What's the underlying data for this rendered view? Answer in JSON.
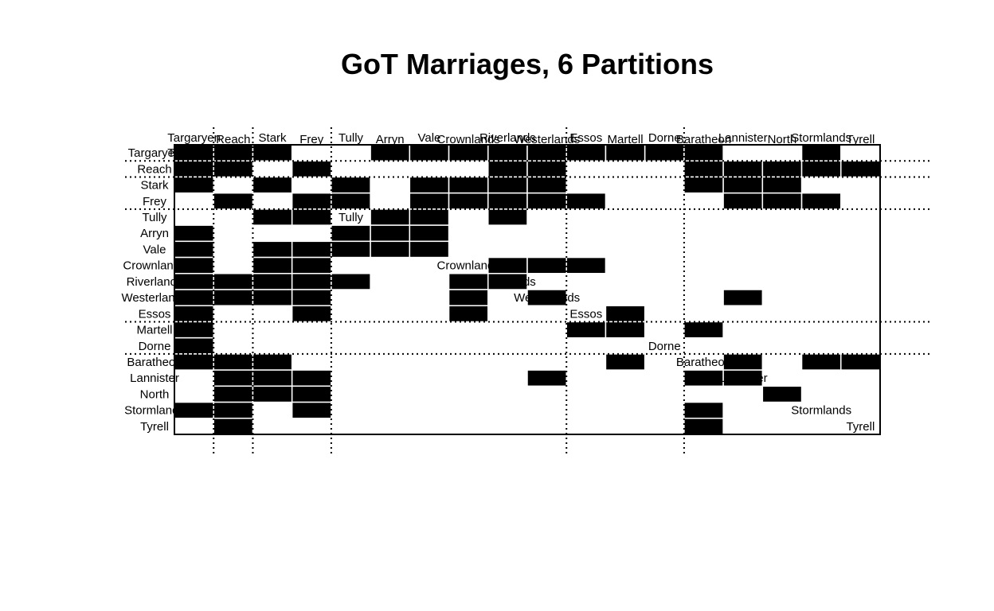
{
  "chart_data": {
    "type": "heatmap",
    "title": "GoT Marriages, 6 Partitions",
    "nodes": [
      "Targaryen",
      "Reach",
      "Stark",
      "Frey",
      "Tully",
      "Arryn",
      "Vale",
      "Crownlands",
      "Riverlands",
      "Westerlands",
      "Essos",
      "Martell",
      "Dorne",
      "Baratheon",
      "Lannister",
      "North",
      "Stormlands",
      "Tyrell"
    ],
    "row_labels": [
      "Targaryen",
      "Reach",
      "Stark",
      "Frey",
      "Tully",
      "Arryn",
      "Vale",
      "Crownlands",
      "Riverlands",
      "Westerlands",
      "Essos",
      "Martell",
      "Dorne",
      "Baratheon",
      "Lannister",
      "North",
      "Stormlands",
      "Tyrell"
    ],
    "col_labels": [
      "Targaryen",
      "Reach",
      "Stark",
      "Frey",
      "Tully",
      "Arryn",
      "Vale",
      "Crownlands",
      "Riverlands",
      "Westerlands",
      "Essos",
      "Martell",
      "Dorne",
      "Baratheon",
      "Lannister",
      "North",
      "Stormlands",
      "Tyrell"
    ],
    "partition_cols": [
      1,
      2,
      4,
      10,
      13
    ],
    "partition_rows": [
      1,
      2,
      4,
      11,
      13
    ],
    "grid": false,
    "matrix": [
      [
        1,
        1,
        1,
        0,
        0,
        1,
        1,
        1,
        1,
        1,
        1,
        1,
        1,
        1,
        0,
        0,
        1,
        0
      ],
      [
        1,
        1,
        0,
        1,
        0,
        0,
        0,
        0,
        1,
        1,
        0,
        0,
        0,
        1,
        1,
        1,
        1,
        1
      ],
      [
        1,
        0,
        1,
        0,
        1,
        0,
        1,
        1,
        1,
        1,
        0,
        0,
        0,
        1,
        1,
        1,
        0,
        0
      ],
      [
        0,
        1,
        0,
        1,
        1,
        0,
        1,
        1,
        1,
        1,
        1,
        0,
        0,
        0,
        1,
        1,
        1,
        0
      ],
      [
        0,
        0,
        1,
        1,
        0,
        1,
        1,
        0,
        1,
        0,
        0,
        0,
        0,
        0,
        0,
        0,
        0,
        0
      ],
      [
        1,
        0,
        0,
        0,
        1,
        1,
        1,
        0,
        0,
        0,
        0,
        0,
        0,
        0,
        0,
        0,
        0,
        0
      ],
      [
        1,
        0,
        1,
        1,
        1,
        1,
        1,
        0,
        0,
        0,
        0,
        0,
        0,
        0,
        0,
        0,
        0,
        0
      ],
      [
        1,
        0,
        1,
        1,
        0,
        0,
        0,
        0,
        1,
        1,
        1,
        0,
        0,
        0,
        0,
        0,
        0,
        0
      ],
      [
        1,
        1,
        1,
        1,
        1,
        0,
        0,
        1,
        1,
        0,
        0,
        0,
        0,
        0,
        0,
        0,
        0,
        0
      ],
      [
        1,
        1,
        1,
        1,
        0,
        0,
        0,
        1,
        0,
        1,
        0,
        0,
        0,
        0,
        1,
        0,
        0,
        0
      ],
      [
        1,
        0,
        0,
        1,
        0,
        0,
        0,
        1,
        0,
        0,
        0,
        1,
        0,
        0,
        0,
        0,
        0,
        0
      ],
      [
        1,
        0,
        0,
        0,
        0,
        0,
        0,
        0,
        0,
        0,
        1,
        1,
        0,
        1,
        0,
        0,
        0,
        0
      ],
      [
        1,
        0,
        0,
        0,
        0,
        0,
        0,
        0,
        0,
        0,
        0,
        0,
        0,
        0,
        0,
        0,
        0,
        0
      ],
      [
        1,
        1,
        1,
        0,
        0,
        0,
        0,
        0,
        0,
        0,
        0,
        1,
        0,
        0,
        1,
        0,
        1,
        1
      ],
      [
        0,
        1,
        1,
        1,
        0,
        0,
        0,
        0,
        0,
        1,
        0,
        0,
        0,
        1,
        1,
        0,
        0,
        0
      ],
      [
        0,
        1,
        1,
        1,
        0,
        0,
        0,
        0,
        0,
        0,
        0,
        0,
        0,
        0,
        0,
        1,
        0,
        0
      ],
      [
        1,
        1,
        0,
        1,
        0,
        0,
        0,
        0,
        0,
        0,
        0,
        0,
        0,
        1,
        0,
        0,
        0,
        0
      ],
      [
        0,
        1,
        0,
        0,
        0,
        0,
        0,
        0,
        0,
        0,
        0,
        0,
        0,
        1,
        0,
        0,
        0,
        0
      ]
    ]
  }
}
